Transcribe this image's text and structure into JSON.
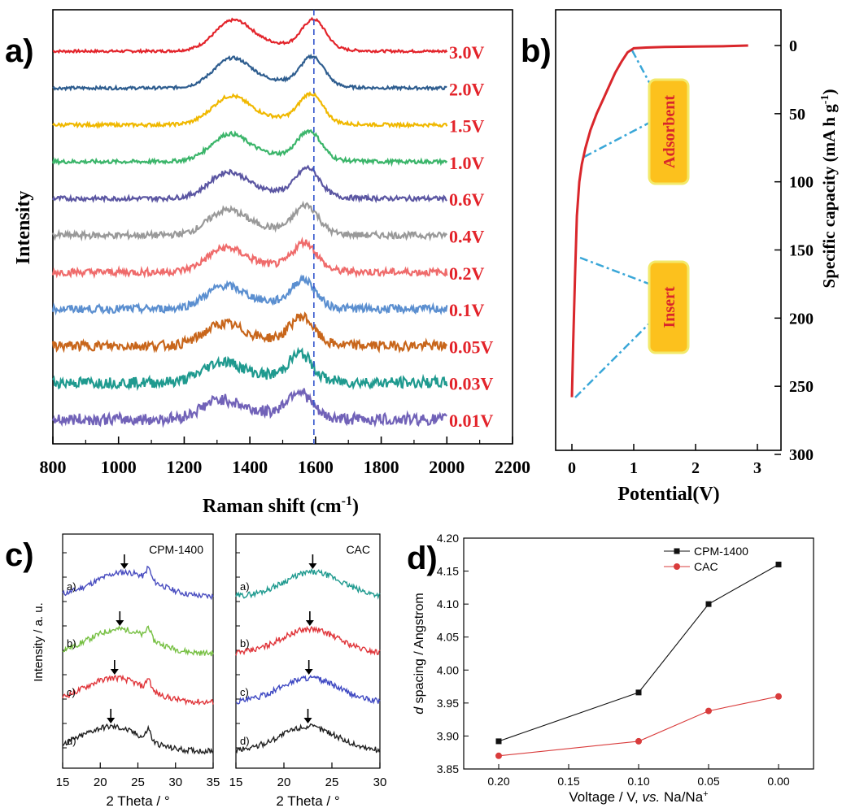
{
  "panels": {
    "a": {
      "label": "a)",
      "chart_data": {
        "type": "line",
        "xlabel": "Raman shift (cm",
        "xlabel_sup": "-1",
        "xlabel_close": ")",
        "ylabel": "Intensity",
        "xlim": [
          800,
          2200
        ],
        "xticks": [
          "800",
          "1000",
          "1200",
          "1400",
          "1600",
          "1800",
          "2000",
          "2200"
        ],
        "vline_x": 1595,
        "series": [
          {
            "name": "3.0V",
            "color": "#e3242b",
            "noise": 0.12
          },
          {
            "name": "2.0V",
            "color": "#2e5d8f",
            "noise": 0.14
          },
          {
            "name": "1.5V",
            "color": "#f0b800",
            "noise": 0.16
          },
          {
            "name": "1.0V",
            "color": "#3bb56a",
            "noise": 0.18
          },
          {
            "name": "0.6V",
            "color": "#5b56a2",
            "noise": 0.22
          },
          {
            "name": "0.4V",
            "color": "#999999",
            "noise": 0.3
          },
          {
            "name": "0.2V",
            "color": "#ef6b6b",
            "noise": 0.34
          },
          {
            "name": "0.1V",
            "color": "#5b8fd0",
            "noise": 0.38
          },
          {
            "name": "0.05V",
            "color": "#c8661b",
            "noise": 0.46
          },
          {
            "name": "0.03V",
            "color": "#1f9a8f",
            "noise": 0.52
          },
          {
            "name": "0.01V",
            "color": "#7162b8",
            "noise": 0.55
          }
        ]
      }
    },
    "b": {
      "label": "b)",
      "chart_data": {
        "type": "line",
        "xlabel": "Potential(V)",
        "ylabel": "Specific capacity (mA h g",
        "ylabel_sup": "-1",
        "ylabel_close": ")",
        "xlim": [
          0,
          3
        ],
        "ylim": [
          300,
          -25
        ],
        "xticks": [
          "0",
          "1",
          "2",
          "3"
        ],
        "yticks": [
          "0",
          "50",
          "100",
          "150",
          "200",
          "250",
          "300"
        ],
        "x": [
          0.0,
          0.02,
          0.05,
          0.08,
          0.12,
          0.16,
          0.22,
          0.3,
          0.4,
          0.5,
          0.6,
          0.7,
          0.8,
          0.9,
          1.0,
          1.2,
          1.5,
          2.0,
          2.5,
          2.85
        ],
        "y": [
          258,
          220,
          170,
          125,
          100,
          87,
          75,
          62,
          50,
          40,
          30,
          20,
          12,
          5,
          2,
          1.5,
          1,
          0.8,
          0.5,
          0
        ],
        "annotations": [
          {
            "text": "Adsorbent",
            "region": "upper"
          },
          {
            "text": "Insert",
            "region": "lower"
          }
        ]
      }
    },
    "c": {
      "label": "c)",
      "ylabel": "Intensity / a. u.",
      "charts": [
        {
          "title": "CPM-1400",
          "xlabel": "2 Theta / °",
          "xlim": [
            15,
            35
          ],
          "xticks": [
            "15",
            "20",
            "25",
            "30",
            "35"
          ],
          "curve_labels": [
            "a)",
            "b)",
            "c)",
            "d)"
          ],
          "colors": [
            "#4a4ec0",
            "#77c043",
            "#e0363b",
            "#222222"
          ],
          "peaks": [
            23.2,
            22.6,
            21.9,
            21.4
          ],
          "sharp": 26.4
        },
        {
          "title": "CAC",
          "xlabel": "2 Theta / °",
          "xlim": [
            15,
            30
          ],
          "xticks": [
            "15",
            "20",
            "25",
            "30"
          ],
          "curve_labels": [
            "a)",
            "b)",
            "c)",
            "d)"
          ],
          "colors": [
            "#1f9a8f",
            "#e0363b",
            "#3e48c2",
            "#222222"
          ],
          "peaks": [
            23.0,
            22.7,
            22.6,
            22.5
          ],
          "sharp": null
        }
      ]
    },
    "d": {
      "label": "d)",
      "chart_data": {
        "type": "line",
        "xlabel_parts": [
          "Voltage / V, ",
          "vs.",
          " Na/Na",
          "+"
        ],
        "ylabel_parts": [
          "d",
          " spacing / Angstrom"
        ],
        "xlim": [
          0.225,
          -0.025
        ],
        "ylim": [
          3.85,
          4.2
        ],
        "xticks": [
          "0.20",
          "0.15",
          "0.10",
          "0.05",
          "0.00"
        ],
        "yticks": [
          "3.85",
          "3.90",
          "3.95",
          "4.00",
          "4.05",
          "4.10",
          "4.15",
          "4.20"
        ],
        "x": [
          0.2,
          0.1,
          0.05,
          0.0
        ],
        "legend_position": "top-right",
        "series": [
          {
            "name": "CPM-1400",
            "color": "#111111",
            "marker": "square",
            "values": [
              3.892,
              3.966,
              4.1,
              4.16
            ]
          },
          {
            "name": "CAC",
            "color": "#d93c3c",
            "marker": "circle",
            "values": [
              3.87,
              3.892,
              3.938,
              3.96
            ]
          }
        ]
      }
    }
  }
}
